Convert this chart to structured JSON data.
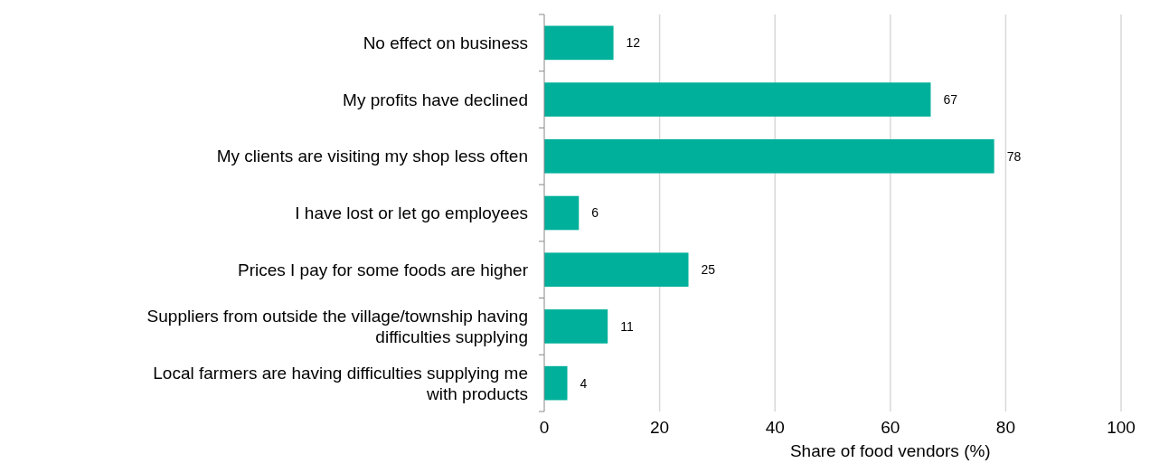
{
  "chart_data": {
    "type": "bar",
    "orientation": "horizontal",
    "xlabel": "Share of food vendors (%)",
    "categories": [
      "No effect on business",
      "My profits have declined",
      "My clients are visiting my shop less often",
      "I have lost or let go employees",
      "Prices I pay for some foods are higher",
      "Suppliers from outside the village/township having difficulties supplying",
      "Local farmers are having difficulties supplying me with products"
    ],
    "values": [
      12,
      67,
      78,
      6,
      25,
      11,
      4
    ],
    "color": "#00b09b",
    "xlim": [
      0,
      100
    ],
    "xticks": [
      0,
      20,
      40,
      60,
      80,
      100
    ],
    "grid": "x",
    "data_labels": true
  }
}
